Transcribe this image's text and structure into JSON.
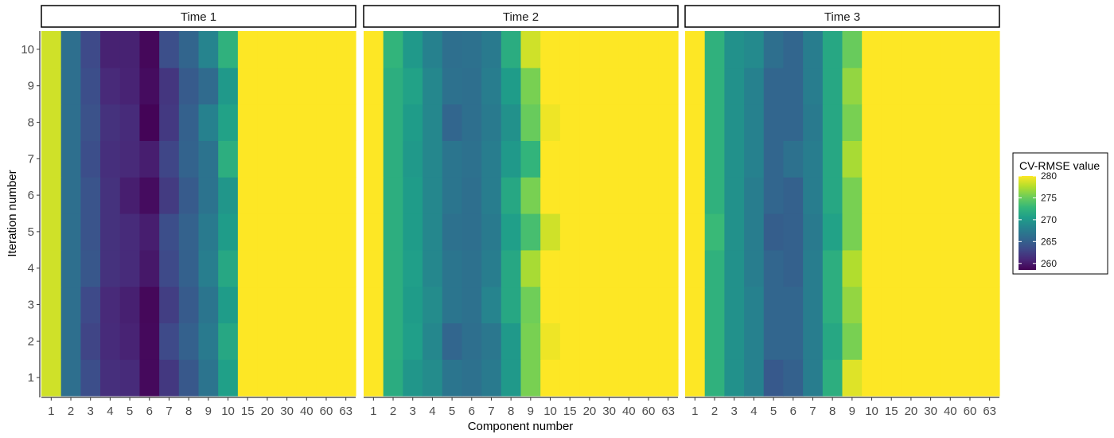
{
  "chart_data": {
    "type": "heatmap",
    "xlabel": "Component number",
    "ylabel": "Iteration number",
    "x_categories": [
      "1",
      "2",
      "3",
      "4",
      "5",
      "6",
      "7",
      "8",
      "9",
      "10",
      "15",
      "20",
      "30",
      "40",
      "60",
      "63"
    ],
    "y_categories": [
      "1",
      "2",
      "3",
      "4",
      "5",
      "6",
      "7",
      "8",
      "9",
      "10"
    ],
    "color_scale": {
      "name": "viridis",
      "title": "CV-RMSE value",
      "min": 258.5,
      "max": 280,
      "ticks": [
        "260",
        "265",
        "270",
        "275",
        "280"
      ],
      "colors": [
        "#440154",
        "#482878",
        "#3E4A89",
        "#31688E",
        "#26828E",
        "#1F9E89",
        "#35B779",
        "#6DCD59",
        "#B4DE2C",
        "#FDE725"
      ]
    },
    "panels": [
      {
        "title": "Time 1",
        "values": [
          [
            278.5,
            266.3,
            263.6,
            261.4,
            261.1,
            259.0,
            262.0,
            264.4,
            266.8,
            270.6,
            280,
            280,
            280,
            280,
            280,
            280
          ],
          [
            278.5,
            266.3,
            262.9,
            261.1,
            260.6,
            259.0,
            263.3,
            265.1,
            267.3,
            271.3,
            280,
            280,
            280,
            280,
            280,
            280
          ],
          [
            278.5,
            266.3,
            263.3,
            261.0,
            260.4,
            258.9,
            262.4,
            264.6,
            266.9,
            270.3,
            280,
            280,
            280,
            280,
            280,
            280
          ],
          [
            278.5,
            266.3,
            264.3,
            261.6,
            261.1,
            259.9,
            263.3,
            265.1,
            267.7,
            271.3,
            280,
            280,
            280,
            280,
            280,
            280
          ],
          [
            278.5,
            266.3,
            264.1,
            261.6,
            261.1,
            260.3,
            263.6,
            265.2,
            267.3,
            270.3,
            280,
            280,
            280,
            280,
            280,
            280
          ],
          [
            278.5,
            266.3,
            264.1,
            261.6,
            260.3,
            259.2,
            262.2,
            264.6,
            266.7,
            269.8,
            280,
            280,
            280,
            280,
            280,
            280
          ],
          [
            278.5,
            266.3,
            263.6,
            261.4,
            261.0,
            260.3,
            263.0,
            265.3,
            266.7,
            272.0,
            280,
            280,
            280,
            280,
            280,
            280
          ],
          [
            278.5,
            266.3,
            263.9,
            261.6,
            261.1,
            258.7,
            262.1,
            265.1,
            268.0,
            270.8,
            280,
            280,
            280,
            280,
            280,
            280
          ],
          [
            278.5,
            266.3,
            263.6,
            261.0,
            260.6,
            259.2,
            261.9,
            264.6,
            265.9,
            270.0,
            280,
            280,
            280,
            280,
            280,
            280
          ],
          [
            278.5,
            266.3,
            263.3,
            260.5,
            260.5,
            258.9,
            263.7,
            265.4,
            268.2,
            272.3,
            280,
            280,
            280,
            280,
            280,
            280
          ]
        ]
      },
      {
        "title": "Time 2",
        "values": [
          [
            280,
            271.8,
            269.8,
            268.9,
            266.9,
            266.5,
            267.3,
            270.0,
            275.6,
            280,
            280,
            280,
            280,
            280,
            280,
            280
          ],
          [
            280,
            272.0,
            270.5,
            268.5,
            265.5,
            266.3,
            267.0,
            270.0,
            275.6,
            279.5,
            280,
            280,
            280,
            280,
            280,
            280
          ],
          [
            280,
            272.0,
            270.3,
            268.9,
            266.9,
            266.5,
            268.2,
            271.3,
            275.3,
            280,
            280,
            280,
            280,
            280,
            280,
            280
          ],
          [
            280,
            272.0,
            270.5,
            268.5,
            266.9,
            266.5,
            267.6,
            271.3,
            277.2,
            280,
            280,
            280,
            280,
            280,
            280,
            280
          ],
          [
            280,
            272.0,
            270.3,
            268.5,
            266.5,
            266.3,
            267.3,
            270.5,
            273.6,
            278.5,
            280,
            280,
            280,
            280,
            280,
            280
          ],
          [
            280,
            272.0,
            270.3,
            268.5,
            266.9,
            266.3,
            267.6,
            271.3,
            275.6,
            280,
            280,
            280,
            280,
            280,
            280,
            280
          ],
          [
            280,
            272.0,
            270.0,
            268.5,
            266.9,
            266.5,
            267.6,
            270.0,
            272.5,
            280,
            280,
            280,
            280,
            280,
            280,
            280
          ],
          [
            280,
            272.0,
            270.3,
            268.5,
            265.5,
            266.3,
            267.3,
            269.3,
            275.0,
            279.5,
            280,
            280,
            280,
            280,
            280,
            280
          ],
          [
            280,
            272.0,
            270.8,
            268.5,
            266.5,
            266.3,
            267.6,
            270.3,
            275.6,
            280,
            280,
            280,
            280,
            280,
            280,
            280
          ],
          [
            280,
            272.5,
            270.0,
            268.0,
            266.3,
            266.5,
            267.3,
            271.8,
            278.5,
            280,
            280,
            280,
            280,
            280,
            280,
            280
          ]
        ]
      },
      {
        "title": "Time 3",
        "values": [
          [
            280,
            272.3,
            269.3,
            268.0,
            264.5,
            265.1,
            267.6,
            272.0,
            279.0,
            280,
            280,
            280,
            280,
            280,
            280,
            280
          ],
          [
            280,
            272.3,
            269.3,
            268.0,
            265.5,
            265.5,
            267.6,
            271.3,
            275.6,
            280,
            280,
            280,
            280,
            280,
            280,
            280
          ],
          [
            280,
            272.3,
            269.3,
            268.0,
            265.5,
            265.5,
            267.6,
            272.0,
            276.5,
            280,
            280,
            280,
            280,
            280,
            280,
            280
          ],
          [
            280,
            272.3,
            269.3,
            267.6,
            265.5,
            265.1,
            267.6,
            272.0,
            277.5,
            280,
            280,
            280,
            280,
            280,
            280,
            280
          ],
          [
            280,
            273.0,
            269.3,
            267.6,
            264.9,
            265.1,
            267.3,
            270.8,
            275.6,
            280,
            280,
            280,
            280,
            280,
            280,
            280
          ],
          [
            280,
            272.3,
            269.3,
            267.6,
            265.5,
            265.1,
            267.6,
            271.3,
            275.6,
            280,
            280,
            280,
            280,
            280,
            280,
            280
          ],
          [
            280,
            272.3,
            269.3,
            268.0,
            265.5,
            266.5,
            267.6,
            271.3,
            277.2,
            280,
            280,
            280,
            280,
            280,
            280,
            280
          ],
          [
            280,
            272.3,
            269.3,
            268.0,
            265.5,
            265.5,
            267.3,
            271.3,
            275.6,
            280,
            280,
            280,
            280,
            280,
            280,
            280
          ],
          [
            280,
            272.3,
            269.3,
            268.0,
            265.5,
            265.5,
            267.6,
            271.3,
            276.5,
            280,
            280,
            280,
            280,
            280,
            280,
            280
          ],
          [
            280,
            272.3,
            269.3,
            268.7,
            266.3,
            265.5,
            267.6,
            271.3,
            275.0,
            280,
            280,
            280,
            280,
            280,
            280,
            280
          ]
        ]
      }
    ]
  }
}
